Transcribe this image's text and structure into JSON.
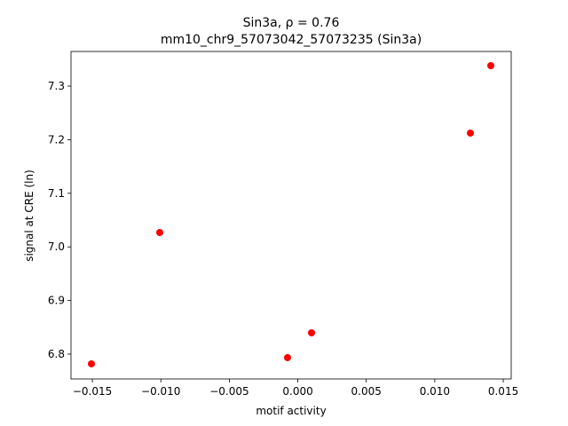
{
  "chart_data": {
    "type": "scatter",
    "title": "Sin3a, ρ = 0.76",
    "subtitle": "mm10_chr9_57073042_57073235 (Sin3a)",
    "xlabel": "motif activity",
    "ylabel": "signal at CRE (ln)",
    "color": "#ff0000",
    "x": [
      -0.01507,
      -0.01008,
      -0.00075,
      0.001,
      0.0126,
      0.01409
    ],
    "values": [
      6.7818,
      7.0268,
      6.7934,
      6.8397,
      7.2123,
      7.3381
    ],
    "xlim": [
      -0.01656,
      0.01558
    ],
    "ylim": [
      6.7536,
      7.3646
    ],
    "xticks": [
      {
        "value": -0.015,
        "label": "−0.015"
      },
      {
        "value": -0.01,
        "label": "−0.010"
      },
      {
        "value": -0.005,
        "label": "−0.005"
      },
      {
        "value": 0,
        "label": "0.000"
      },
      {
        "value": 0.005,
        "label": "0.005"
      },
      {
        "value": 0.01,
        "label": "0.010"
      },
      {
        "value": 0.015,
        "label": "0.015"
      }
    ],
    "yticks": [
      6.8,
      6.9,
      {
        "value": 7.0,
        "label": "7.0"
      },
      7.1,
      7.2,
      7.3
    ]
  }
}
